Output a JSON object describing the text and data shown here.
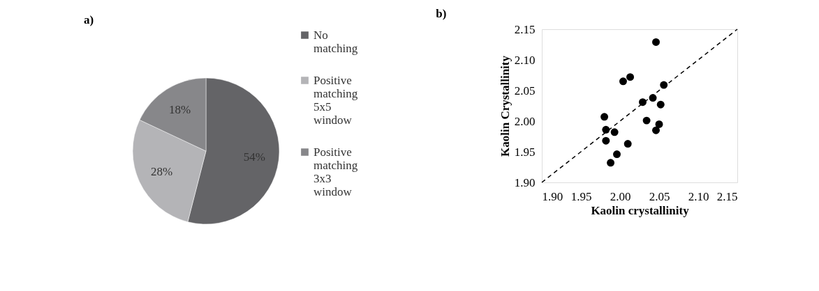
{
  "chart_data": [
    {
      "type": "pie",
      "title": "a)",
      "categories": [
        "No matching",
        "Positive matching 5x5 window",
        "Positive matching 3x3 window"
      ],
      "values": [
        54,
        28,
        18
      ],
      "colors": [
        "#646467",
        "#b4b4b7",
        "#87878a"
      ],
      "value_labels": [
        "54%",
        "28%",
        "18%"
      ],
      "legend": "right"
    },
    {
      "type": "scatter",
      "title": "b)",
      "xlabel": "Kaolin crystallinity",
      "ylabel": "Kaolin Crystallinity",
      "xlim": [
        1.9,
        2.15
      ],
      "ylim": [
        1.9,
        2.15
      ],
      "xticks": [
        {
          "value": 1.9,
          "label": "1.90"
        },
        {
          "value": 1.95,
          "label": "1.95"
        },
        {
          "value": 2.0,
          "label": "2.00"
        },
        {
          "value": 2.05,
          "label": "2.05"
        },
        {
          "value": 2.1,
          "label": "2.10"
        },
        {
          "value": 2.15,
          "label": "2.15"
        }
      ],
      "yticks": [
        {
          "value": 1.9,
          "label": "1.90"
        },
        {
          "value": 1.95,
          "label": "1.95"
        },
        {
          "value": 2.0,
          "label": "2.00"
        },
        {
          "value": 2.05,
          "label": "2.05"
        },
        {
          "value": 2.1,
          "label": "2.10"
        },
        {
          "value": 2.15,
          "label": "2.15"
        }
      ],
      "grid": false,
      "series": [
        {
          "type": "scatter",
          "color": "#000000",
          "marker": "circle",
          "x": [
            2.046,
            2.004,
            2.013,
            2.056,
            2.029,
            2.042,
            2.052,
            1.98,
            2.034,
            2.05,
            2.046,
            1.982,
            1.993,
            1.982,
            2.01,
            1.996,
            1.988
          ],
          "values": [
            2.129,
            2.065,
            2.072,
            2.059,
            2.031,
            2.038,
            2.027,
            2.007,
            2.001,
            1.995,
            1.985,
            1.986,
            1.982,
            1.968,
            1.963,
            1.946,
            1.932
          ]
        },
        {
          "type": "line",
          "color": "#000000",
          "line_style": "dashed",
          "marker": "none",
          "x": [
            1.9,
            2.15
          ],
          "values": [
            1.9,
            2.15
          ]
        }
      ]
    }
  ]
}
